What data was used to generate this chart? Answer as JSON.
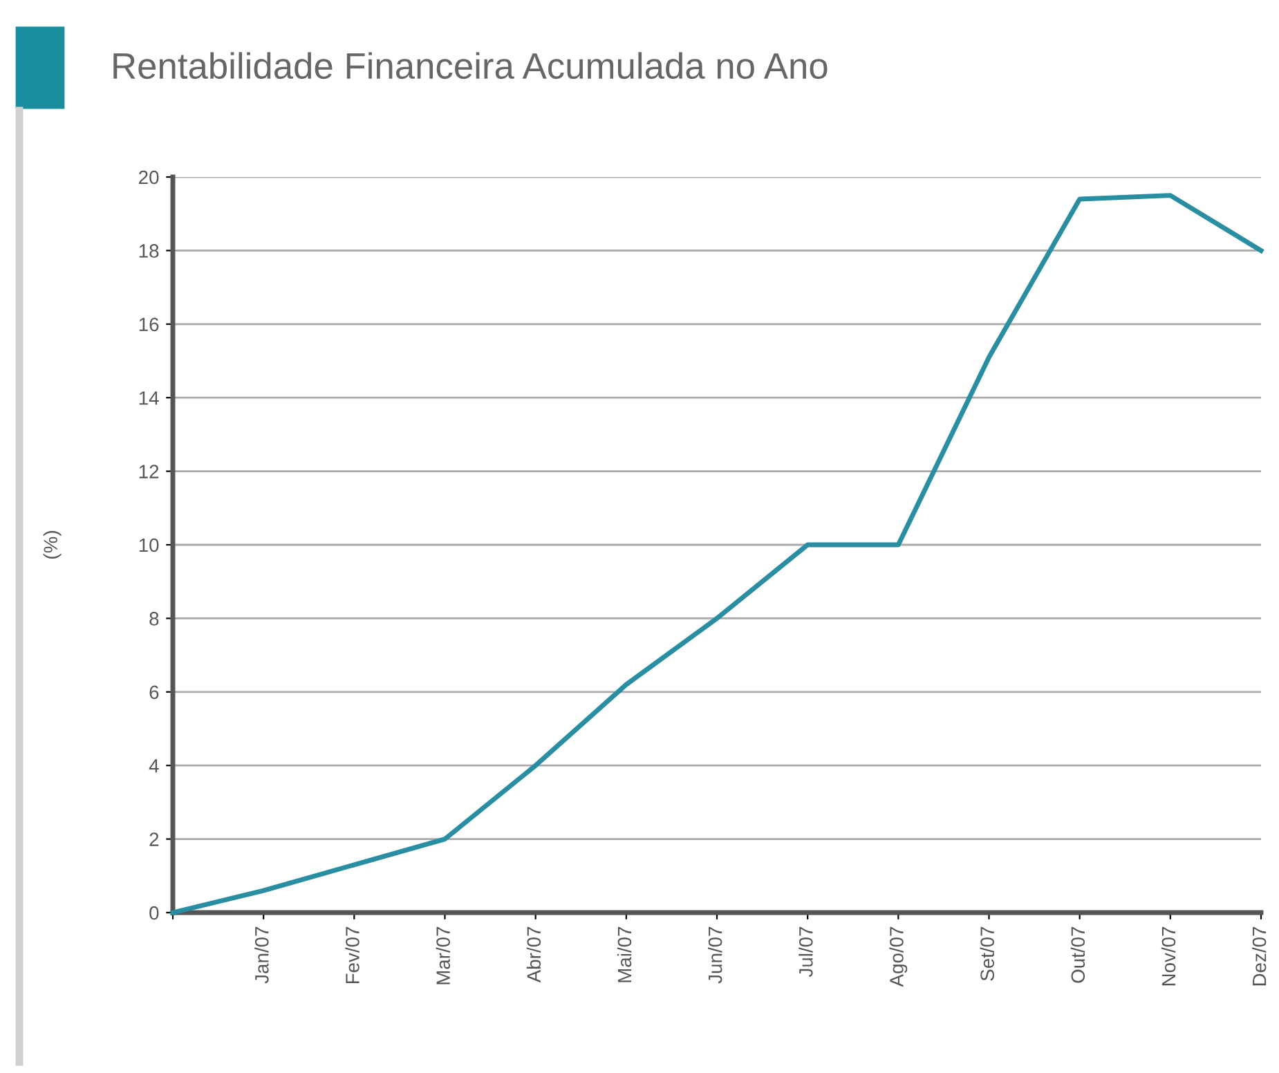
{
  "chart_data": {
    "type": "line",
    "title": "Rentabilidade Financeira Acumulada no Ano",
    "ylabel": "(%)",
    "categories": [
      null,
      "Jan/07",
      "Fev/07",
      "Mar/07",
      "Abr/07",
      "Mai/07",
      "Jun/07",
      "Jul/07",
      "Ago/07",
      "Set/07",
      "Out/07",
      "Nov/07",
      "Dez/07"
    ],
    "series": [
      {
        "color": "#2a8ea3",
        "values": [
          0,
          0.6,
          1.3,
          2.0,
          4.0,
          6.2,
          8.0,
          10.0,
          10.0,
          15.1,
          19.4,
          19.5,
          18.0
        ]
      }
    ],
    "ylim": [
      0,
      20
    ],
    "yticks": [
      0,
      2,
      4,
      6,
      8,
      10,
      12,
      14,
      16,
      18,
      20
    ],
    "grid": "y",
    "marker": "none",
    "line_style": "solid",
    "legend": false
  }
}
